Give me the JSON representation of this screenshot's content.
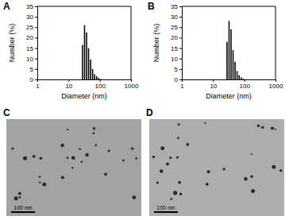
{
  "chart_data": [
    {
      "type": "histogram",
      "title": "A",
      "x_label": "Diameter (nm)",
      "y_label": "Number (%)",
      "bins": [
        26,
        30.2,
        35,
        40.6,
        47.1,
        54.7,
        63.5,
        73.7,
        85.5,
        99.2,
        115
      ],
      "values": [
        16.5,
        26,
        22.5,
        15,
        9.5,
        5,
        2.5,
        1.5,
        0.7,
        0.2
      ],
      "color": "#000000",
      "log": "x",
      "grid": false,
      "xlim": [
        1,
        1000
      ],
      "xticks": [
        1,
        10,
        100,
        1000
      ],
      "ylim": [
        0,
        35
      ],
      "yticks": [
        0,
        5,
        10,
        15,
        20,
        25,
        30,
        35
      ]
    },
    {
      "type": "histogram",
      "title": "B",
      "x_label": "Diameter (nm)",
      "y_label": "Number (%)",
      "bins": [
        26,
        30.2,
        35,
        40.6,
        47.1,
        54.7,
        63.5,
        73.7,
        85.5,
        99.2,
        115
      ],
      "values": [
        18,
        28,
        24,
        14,
        8.5,
        4,
        2,
        1,
        0.4,
        0.1
      ],
      "color": "#000000",
      "log": "x",
      "grid": false,
      "xlim": [
        1,
        1000
      ],
      "xticks": [
        1,
        10,
        100,
        1000
      ],
      "ylim": [
        0,
        35
      ],
      "yticks": [
        0,
        5,
        10,
        15,
        20,
        25,
        30,
        35
      ]
    }
  ],
  "images": [
    {
      "label": "C",
      "scale_bar": "100 nm"
    },
    {
      "label": "D",
      "scale_bar": "100 nm"
    }
  ]
}
